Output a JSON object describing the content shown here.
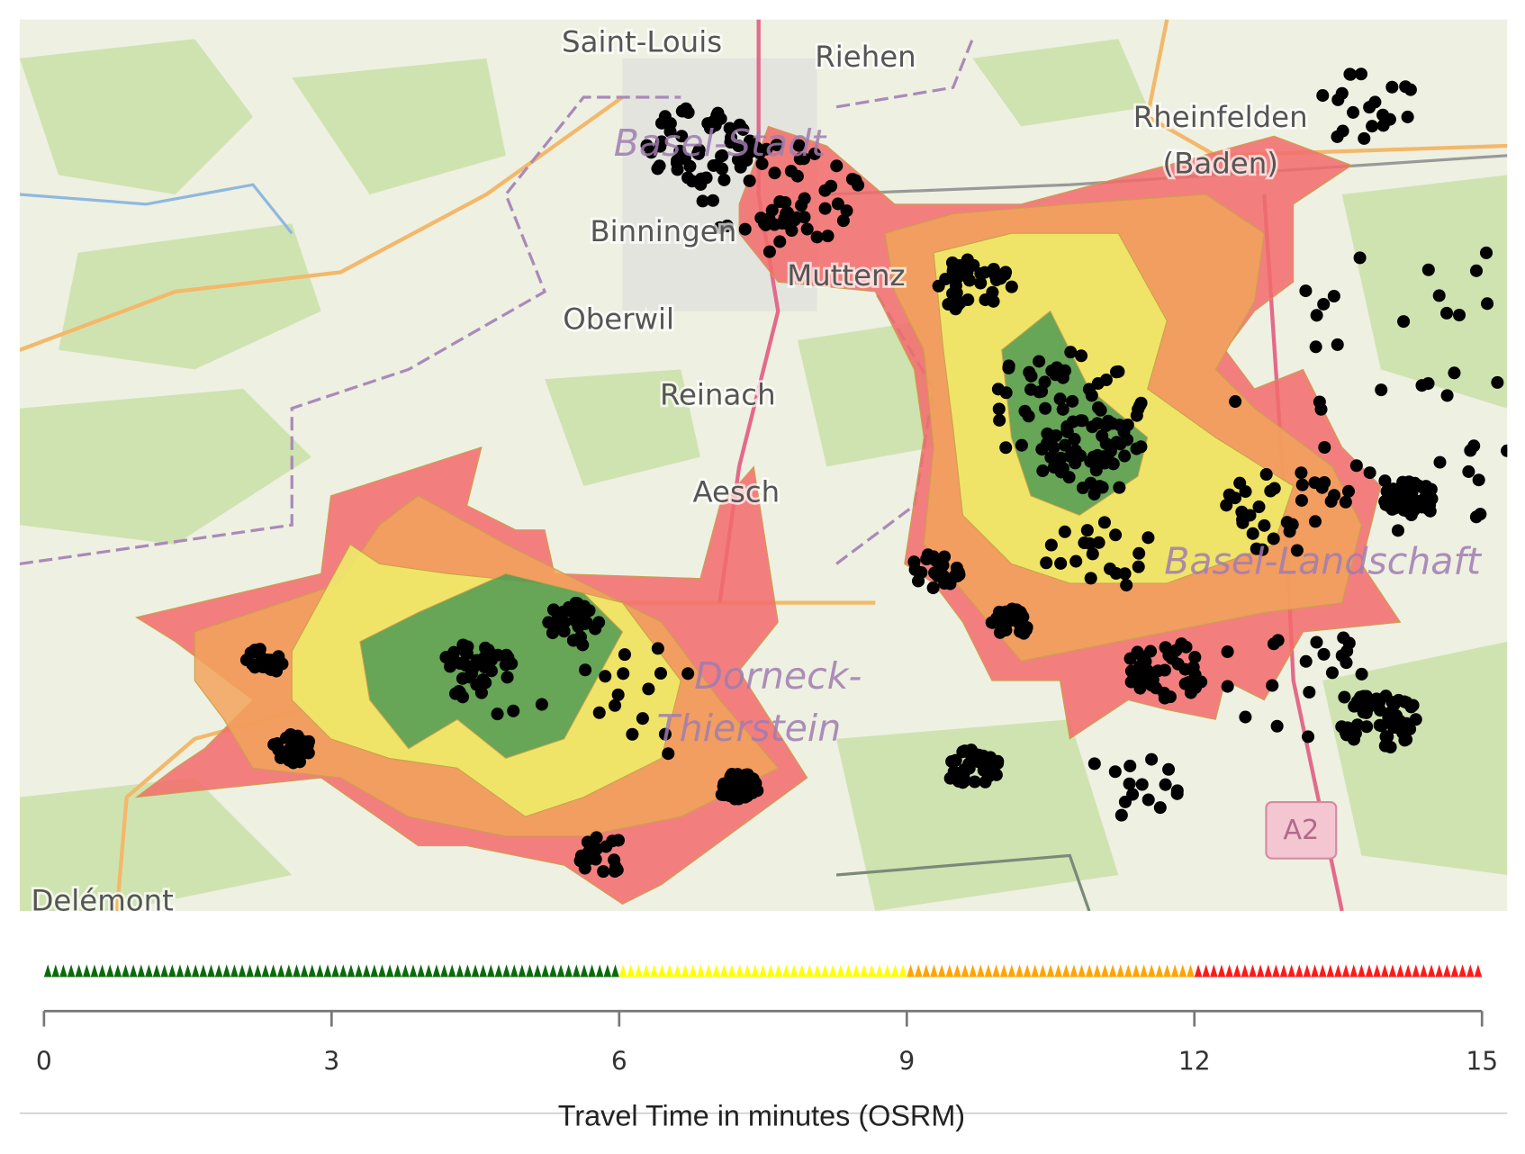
{
  "map": {
    "labels": [
      {
        "text": "Saint-Louis",
        "kind": "town"
      },
      {
        "text": "Riehen",
        "kind": "town"
      },
      {
        "text": "Rheinfelden",
        "kind": "town"
      },
      {
        "text": "(Baden)",
        "kind": "town"
      },
      {
        "text": "Basel-Stadt",
        "kind": "region"
      },
      {
        "text": "Binningen",
        "kind": "town"
      },
      {
        "text": "Muttenz",
        "kind": "town"
      },
      {
        "text": "Oberwil",
        "kind": "town"
      },
      {
        "text": "Reinach",
        "kind": "town"
      },
      {
        "text": "Aesch",
        "kind": "town"
      },
      {
        "text": "Dorneck-",
        "kind": "region"
      },
      {
        "text": "Thierstein",
        "kind": "region"
      },
      {
        "text": "Basel-Landschaft",
        "kind": "region"
      },
      {
        "text": "Delémont",
        "kind": "town"
      },
      {
        "text": "A2",
        "kind": "shield"
      }
    ]
  },
  "chart_data": {
    "type": "colorbar",
    "title": "Travel Time in minutes (OSRM)",
    "xlim": [
      0,
      15
    ],
    "xticks": [
      0,
      3,
      6,
      9,
      12,
      15
    ],
    "segments": [
      {
        "from": 0,
        "to": 6,
        "color": "#0b6b0b"
      },
      {
        "from": 6,
        "to": 9,
        "color": "#ffff00"
      },
      {
        "from": 9,
        "to": 12,
        "color": "#ffa500"
      },
      {
        "from": 12,
        "to": 15,
        "color": "#ff1a1a"
      }
    ]
  }
}
